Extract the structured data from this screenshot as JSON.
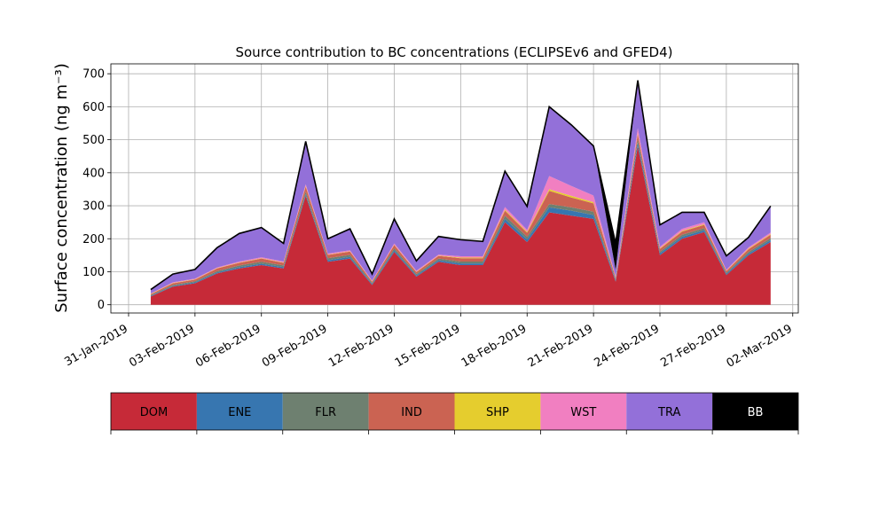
{
  "chart_data": {
    "type": "area",
    "stacked": true,
    "title": "Source contribution to BC concentrations (ECLIPSEv6 and GFED4)",
    "ylabel": "Surface concentration (ng m⁻³)",
    "xlabel": "",
    "xlim": [
      "2019-01-31",
      "2019-03-02"
    ],
    "ylim": [
      -25,
      730
    ],
    "yticks": [
      0,
      100,
      200,
      300,
      400,
      500,
      600,
      700
    ],
    "xticks": [
      "31-Jan-2019",
      "03-Feb-2019",
      "06-Feb-2019",
      "09-Feb-2019",
      "12-Feb-2019",
      "15-Feb-2019",
      "18-Feb-2019",
      "21-Feb-2019",
      "24-Feb-2019",
      "27-Feb-2019",
      "02-Mar-2019"
    ],
    "grid": true,
    "legend_placement": "below",
    "x": [
      "2019-02-01",
      "2019-02-02",
      "2019-02-03",
      "2019-02-04",
      "2019-02-05",
      "2019-02-06",
      "2019-02-07",
      "2019-02-08",
      "2019-02-09",
      "2019-02-10",
      "2019-02-11",
      "2019-02-12",
      "2019-02-13",
      "2019-02-14",
      "2019-02-15",
      "2019-02-16",
      "2019-02-17",
      "2019-02-18",
      "2019-02-19",
      "2019-02-20",
      "2019-02-21",
      "2019-02-22",
      "2019-02-23",
      "2019-02-24",
      "2019-02-25",
      "2019-02-26",
      "2019-02-27",
      "2019-02-28",
      "2019-03-01"
    ],
    "series": [
      {
        "name": "DOM",
        "color": "#c62a38",
        "values": [
          25,
          55,
          65,
          95,
          110,
          120,
          110,
          330,
          130,
          140,
          60,
          160,
          85,
          130,
          120,
          120,
          250,
          190,
          280,
          270,
          260,
          70,
          480,
          150,
          200,
          220,
          90,
          150,
          190
        ]
      },
      {
        "name": "ENE",
        "color": "#3776b0",
        "values": [
          2,
          2,
          3,
          3,
          4,
          4,
          4,
          5,
          5,
          5,
          3,
          5,
          4,
          5,
          5,
          5,
          10,
          8,
          15,
          15,
          12,
          4,
          12,
          6,
          6,
          6,
          4,
          5,
          6
        ]
      },
      {
        "name": "FLR",
        "color": "#6e8070",
        "values": [
          2,
          3,
          3,
          4,
          5,
          6,
          5,
          8,
          6,
          6,
          3,
          6,
          4,
          5,
          6,
          6,
          10,
          8,
          10,
          10,
          10,
          3,
          10,
          5,
          6,
          6,
          3,
          5,
          6
        ]
      },
      {
        "name": "IND",
        "color": "#cb6352",
        "values": [
          3,
          5,
          5,
          8,
          8,
          10,
          8,
          15,
          10,
          10,
          4,
          10,
          6,
          8,
          10,
          10,
          15,
          12,
          40,
          30,
          25,
          5,
          15,
          8,
          10,
          10,
          5,
          8,
          10
        ]
      },
      {
        "name": "SHP",
        "color": "#e5cd2e",
        "values": [
          1,
          1,
          1,
          1,
          1,
          1,
          1,
          2,
          1,
          1,
          1,
          1,
          1,
          1,
          2,
          2,
          3,
          3,
          5,
          5,
          4,
          1,
          3,
          2,
          2,
          2,
          1,
          2,
          2
        ]
      },
      {
        "name": "WST",
        "color": "#f17fc1",
        "values": [
          1,
          2,
          2,
          2,
          3,
          3,
          3,
          5,
          3,
          3,
          2,
          4,
          3,
          3,
          4,
          4,
          8,
          6,
          40,
          30,
          20,
          3,
          15,
          5,
          6,
          6,
          3,
          4,
          5
        ]
      },
      {
        "name": "TRA",
        "color": "#9370d9",
        "values": [
          12,
          25,
          28,
          60,
          85,
          90,
          55,
          130,
          45,
          65,
          20,
          74,
          30,
          55,
          50,
          45,
          109,
          71,
          210,
          185,
          150,
          20,
          145,
          66,
          50,
          30,
          42,
          30,
          80
        ]
      },
      {
        "name": "BB",
        "color": "#000000",
        "values": [
          0,
          0,
          0,
          0,
          0,
          0,
          0,
          0,
          0,
          0,
          0,
          0,
          0,
          0,
          0,
          0,
          0,
          0,
          0,
          0,
          0,
          80,
          0,
          0,
          0,
          0,
          0,
          0,
          0
        ]
      }
    ],
    "legend": [
      {
        "label": "DOM",
        "color": "#c62a38",
        "text_color": "#000000"
      },
      {
        "label": "ENE",
        "color": "#3776b0",
        "text_color": "#000000"
      },
      {
        "label": "FLR",
        "color": "#6e8070",
        "text_color": "#000000"
      },
      {
        "label": "IND",
        "color": "#cb6352",
        "text_color": "#000000"
      },
      {
        "label": "SHP",
        "color": "#e5cd2e",
        "text_color": "#000000"
      },
      {
        "label": "WST",
        "color": "#f17fc1",
        "text_color": "#000000"
      },
      {
        "label": "TRA",
        "color": "#9370d9",
        "text_color": "#000000"
      },
      {
        "label": "BB",
        "color": "#000000",
        "text_color": "#ffffff"
      }
    ]
  }
}
